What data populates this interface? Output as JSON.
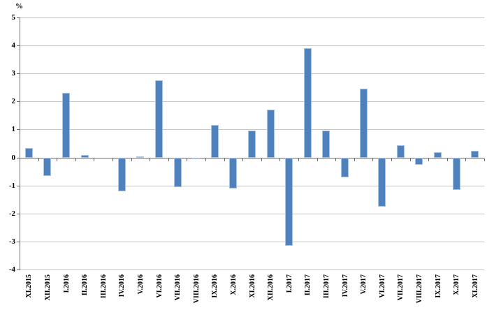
{
  "chart_data": {
    "type": "bar",
    "title": "",
    "xlabel": "",
    "ylabel": "%",
    "legend": "none",
    "grid": "horizontal",
    "ylim": [
      -4,
      5
    ],
    "yticks": [
      5,
      4,
      3,
      2,
      1,
      0,
      -1,
      -2,
      -3,
      -4
    ],
    "categories": [
      "XI.2015",
      "XII.2015",
      "I.2016",
      "II.2016",
      "III.2016",
      "IV.2016",
      "V.2016",
      "VI.2016",
      "VII.2016",
      "VIII.2016",
      "IX.2016",
      "X.2016",
      "XI.2016",
      "XII.2016",
      "I.2017",
      "II.2017",
      "III.2017",
      "IV.2017",
      "V.2017",
      "VI.2017",
      "VII.2017",
      "VIII.2017",
      "IX.2017",
      "X.2017",
      "XI.2017"
    ],
    "values": [
      0.35,
      -0.65,
      2.3,
      0.1,
      0.0,
      -1.2,
      0.05,
      2.75,
      -1.05,
      -0.05,
      1.15,
      -1.1,
      0.95,
      1.7,
      -3.15,
      3.9,
      0.95,
      -0.7,
      2.45,
      -1.75,
      0.45,
      -0.25,
      0.2,
      -1.15,
      0.25
    ],
    "colors": {
      "bar_fill": "#4F81BD",
      "bar_edge": "#A9C4E3",
      "gridline": "#C3C3C3",
      "axis": "#6B6B6B",
      "text": "#000000",
      "background": "#FFFFFF"
    }
  }
}
